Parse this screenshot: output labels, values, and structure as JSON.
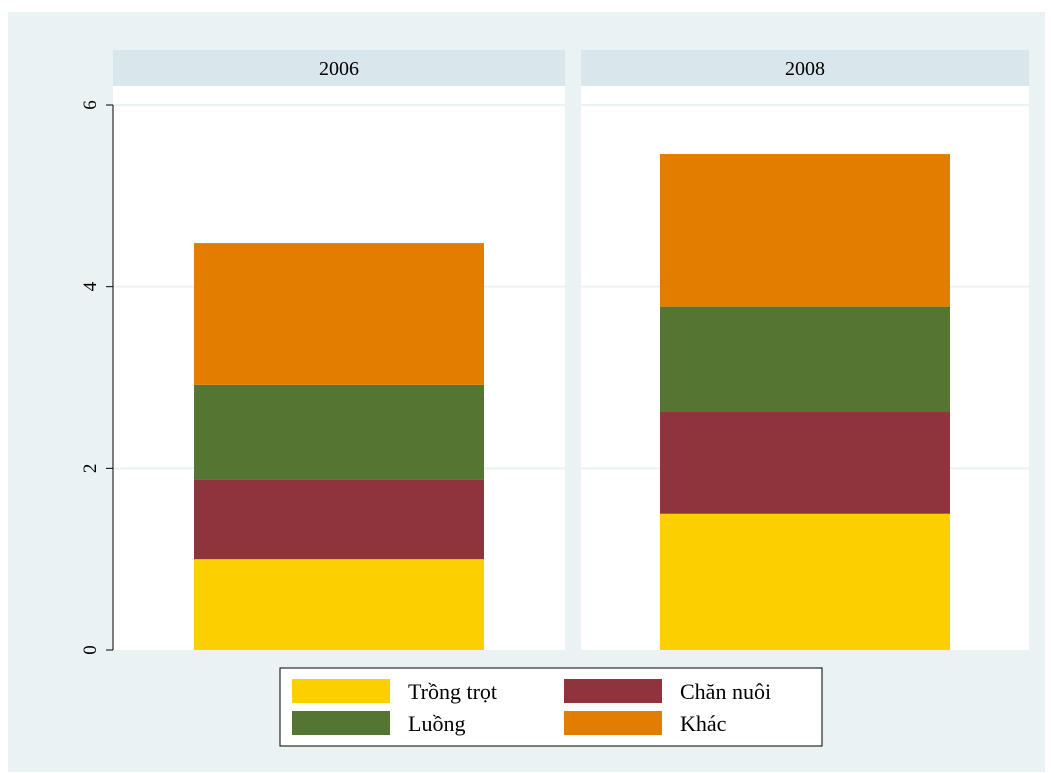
{
  "colors": {
    "background": "#eaf2f3",
    "panel": "#ffffff",
    "strip": "#d9e6eb",
    "grid": "#eaf2f3",
    "series": [
      "#fcd000",
      "#8f343c",
      "#557533",
      "#e37d00"
    ]
  },
  "chart_data": {
    "type": "bar",
    "stacked": true,
    "panels": [
      "2006",
      "2008"
    ],
    "series": [
      {
        "name": "Trồng trọt",
        "values": [
          1.0,
          1.5
        ]
      },
      {
        "name": "Chăn nuôi",
        "values": [
          0.88,
          1.12
        ]
      },
      {
        "name": "Luồng",
        "values": [
          1.04,
          1.16
        ]
      },
      {
        "name": "Khác",
        "values": [
          1.56,
          1.68
        ]
      }
    ],
    "yticks": [
      "0",
      "2",
      "4",
      "6"
    ],
    "ylim": [
      0,
      6
    ],
    "grid": true,
    "legend_position": "bottom"
  }
}
